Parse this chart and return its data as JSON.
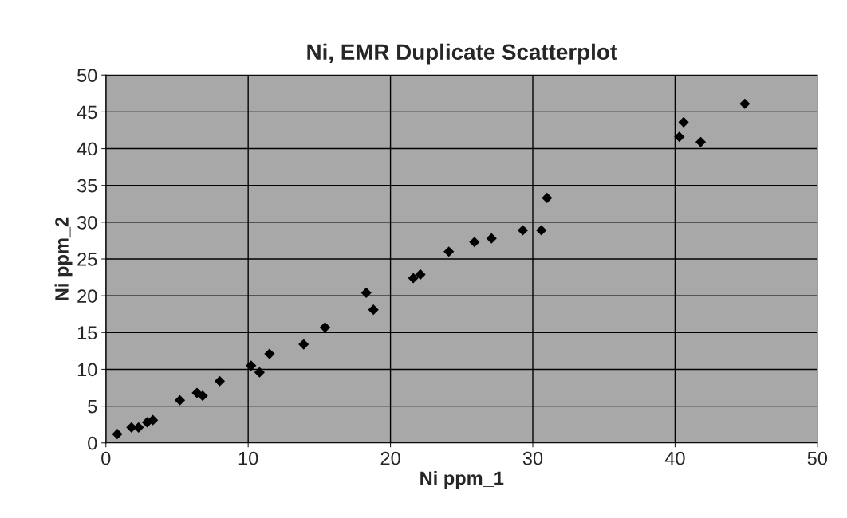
{
  "chart_data": {
    "type": "scatter",
    "title": "Ni, EMR Duplicate Scatterplot",
    "xlabel": "Ni ppm_1",
    "ylabel": "Ni ppm_2",
    "x": [
      0.8,
      1.8,
      2.3,
      2.9,
      3.3,
      5.2,
      6.4,
      6.8,
      8.0,
      10.2,
      10.8,
      11.5,
      13.9,
      15.4,
      18.3,
      18.8,
      21.6,
      22.1,
      24.1,
      25.9,
      27.1,
      29.3,
      30.6,
      31.0,
      40.3,
      40.6,
      41.8,
      44.9
    ],
    "series": [
      {
        "color": "#000000",
        "values": [
          1.2,
          2.1,
          2.1,
          2.8,
          3.1,
          5.8,
          6.8,
          6.4,
          8.4,
          10.5,
          9.6,
          12.1,
          13.4,
          15.7,
          20.4,
          18.1,
          22.4,
          22.9,
          26.0,
          27.3,
          27.8,
          28.9,
          28.9,
          33.3,
          41.6,
          43.6,
          40.9,
          46.1
        ]
      }
    ],
    "xlim": [
      0,
      50
    ],
    "xticks": [
      0,
      10,
      20,
      30,
      40,
      50
    ],
    "ylim": [
      0,
      50
    ],
    "yticks": [
      0,
      5,
      10,
      15,
      20,
      25,
      30,
      35,
      40,
      45,
      50
    ],
    "grid": true,
    "marker": "diamond"
  }
}
